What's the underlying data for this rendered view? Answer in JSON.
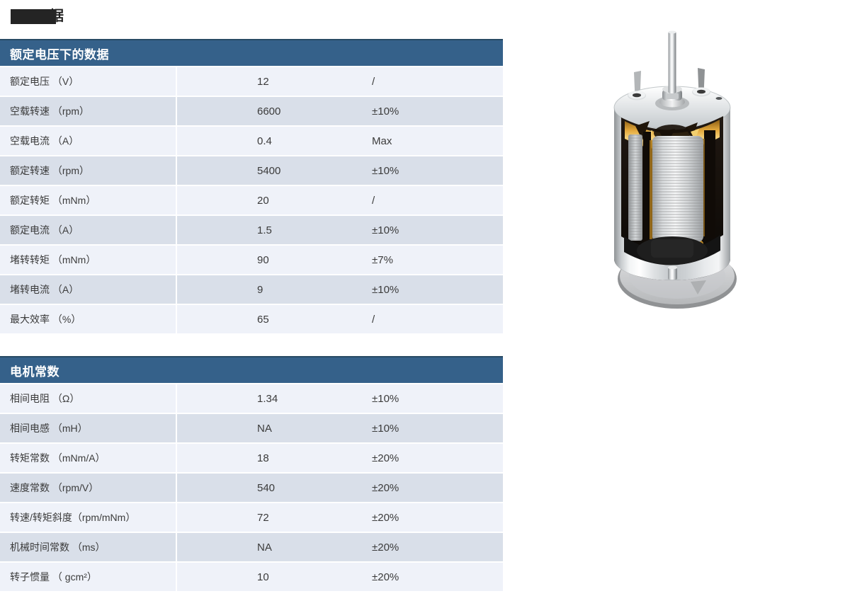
{
  "page": {
    "background": "#ffffff",
    "badge": {
      "partial_char": "据",
      "box_color": "#242424"
    }
  },
  "image": {
    "alt": "motor-cutaway-render"
  },
  "colors": {
    "header_bg": "#35618a",
    "header_top_border": "#284a64",
    "row_light": "#eff2f9",
    "row_dark": "#d9dfe9",
    "header_text": "#ffffff",
    "body_text": "#3b3b3b"
  },
  "tables": [
    {
      "title": "额定电压下的数据",
      "rows": [
        {
          "label": "额定电压 （V）",
          "value": "12",
          "tolerance": "/"
        },
        {
          "label": "空载转速 （rpm）",
          "value": "6600",
          "tolerance": "±10%"
        },
        {
          "label": "空载电流 （A）",
          "value": "0.4",
          "tolerance": "Max"
        },
        {
          "label": "额定转速 （rpm）",
          "value": "5400",
          "tolerance": "±10%"
        },
        {
          "label": "额定转矩 （mNm）",
          "value": "20",
          "tolerance": "/"
        },
        {
          "label": "额定电流 （A）",
          "value": "1.5",
          "tolerance": "±10%"
        },
        {
          "label": "堵转转矩 （mNm）",
          "value": "90",
          "tolerance": "±7%"
        },
        {
          "label": "堵转电流 （A）",
          "value": "9",
          "tolerance": "±10%"
        },
        {
          "label": "最大效率 （%）",
          "value": "65",
          "tolerance": "/"
        }
      ]
    },
    {
      "title": "电机常数",
      "rows": [
        {
          "label": "相间电阻 （Ω）",
          "value": "1.34",
          "tolerance": "±10%"
        },
        {
          "label": "相间电感 （mH）",
          "value": "NA",
          "tolerance": "±10%"
        },
        {
          "label": "转矩常数 （mNm/A）",
          "value": "18",
          "tolerance": "±20%"
        },
        {
          "label": "速度常数 （rpm/V）",
          "value": "540",
          "tolerance": "±20%"
        },
        {
          "label": "转速/转矩斜度（rpm/mNm）",
          "value": "72",
          "tolerance": "±20%"
        },
        {
          "label": "机械时间常数 （ms）",
          "value": "NA",
          "tolerance": "±20%"
        },
        {
          "label": "转子惯量 （ gcm²）",
          "value": "10",
          "tolerance": "±20%"
        }
      ]
    }
  ]
}
